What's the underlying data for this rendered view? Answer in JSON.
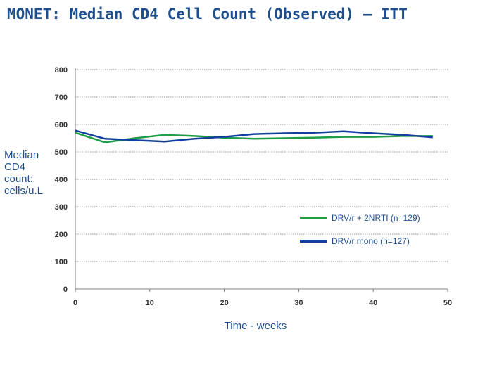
{
  "chart_data": {
    "type": "line",
    "title": "MONET: Median CD4 Cell Count (Observed) – ITT",
    "ylabel_lines": [
      "Median",
      "CD4",
      "count:",
      "cells/u.L"
    ],
    "xlabel": "Time - weeks",
    "xlim": [
      0,
      50
    ],
    "ylim": [
      0,
      800
    ],
    "xticks": [
      0,
      10,
      20,
      30,
      40,
      50
    ],
    "yticks": [
      0,
      100,
      200,
      300,
      400,
      500,
      600,
      700,
      800
    ],
    "grid": true,
    "legend_position": "right",
    "series": [
      {
        "name": "DRV/r + 2NRTI (n=129)",
        "color": "#1e9e45",
        "x": [
          0,
          4,
          8,
          12,
          16,
          20,
          24,
          28,
          32,
          36,
          40,
          44,
          48
        ],
        "y": [
          570,
          535,
          550,
          562,
          558,
          552,
          548,
          550,
          552,
          555,
          555,
          558,
          558
        ]
      },
      {
        "name": "DRV/r mono (n=127)",
        "color": "#123f9e",
        "x": [
          0,
          4,
          8,
          12,
          16,
          20,
          24,
          28,
          32,
          36,
          40,
          44,
          48
        ],
        "y": [
          578,
          548,
          543,
          538,
          548,
          555,
          565,
          568,
          570,
          575,
          568,
          562,
          553
        ]
      }
    ]
  }
}
